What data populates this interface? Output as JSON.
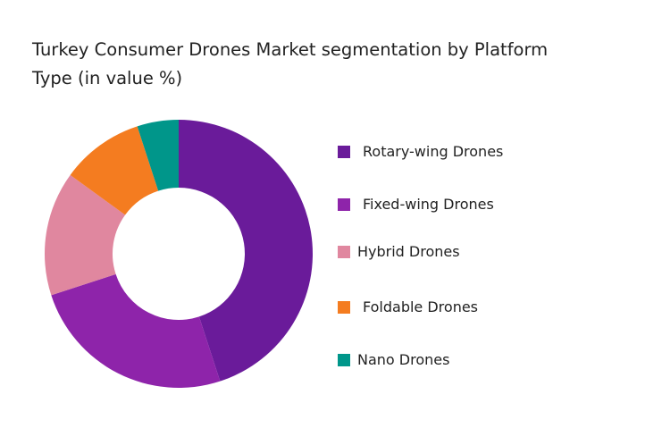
{
  "chart_data": {
    "type": "pie",
    "variant": "donut",
    "title": "Turkey Consumer Drones Market segmentation by Platform Type (in value %)",
    "categories": [
      "Rotary-wing Drones",
      "Fixed-wing Drones",
      "Hybrid Drones",
      "Foldable Drones",
      "Nano Drones"
    ],
    "values": [
      45,
      25,
      15,
      10,
      5
    ],
    "colors": [
      "#6a1b9a",
      "#8e24aa",
      "#e0879f",
      "#f47c20",
      "#00968a"
    ],
    "legend_position": "right"
  }
}
